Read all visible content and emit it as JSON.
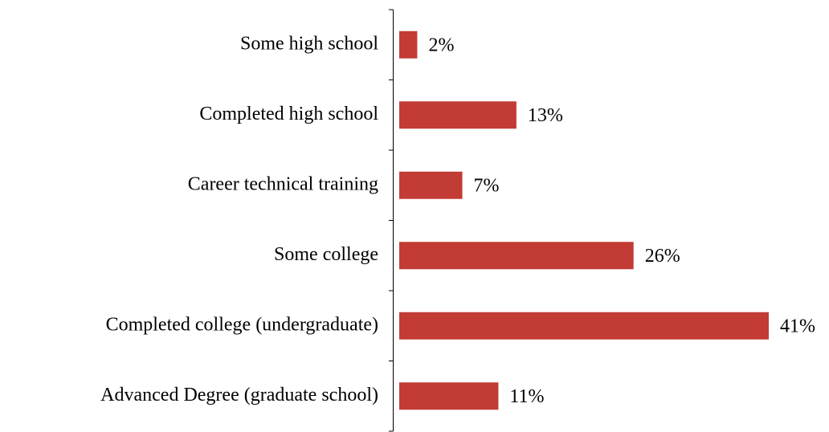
{
  "chart_data": {
    "type": "bar",
    "orientation": "horizontal",
    "categories": [
      "Some high school",
      "Completed high school",
      "Career technical training",
      "Some college",
      "Completed college (undergraduate)",
      "Advanced Degree (graduate school)"
    ],
    "values": [
      2,
      13,
      7,
      26,
      41,
      11
    ],
    "value_labels": [
      "2%",
      "13%",
      "7%",
      "26%",
      "41%",
      "11%"
    ],
    "color": "#c33b35"
  }
}
